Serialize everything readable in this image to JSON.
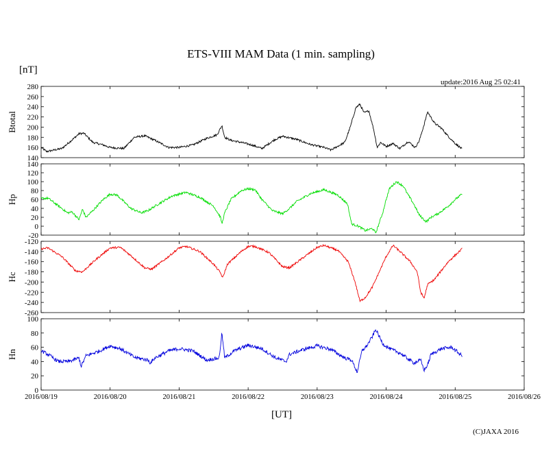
{
  "chart_data": {
    "type": "line",
    "title": "ETS-VIII MAM Data (1 min. sampling)",
    "ylabel_unit": "[nT]",
    "xlabel": "[UT]",
    "update_text": "update:2016 Aug 25 02:41",
    "credit": "(C)JAXA 2016",
    "x_ticks": [
      "2016/08/19",
      "2016/08/20",
      "2016/08/21",
      "2016/08/22",
      "2016/08/23",
      "2016/08/24",
      "2016/08/25",
      "2016/08/26"
    ],
    "x_range_days": [
      0,
      7
    ],
    "panels": [
      {
        "name": "Btotal",
        "color": "#000000",
        "ylim": [
          140,
          280
        ],
        "y_ticks": [
          140,
          160,
          180,
          200,
          220,
          240,
          260,
          280
        ],
        "noise": 2,
        "x": [
          0,
          0.08,
          0.3,
          0.45,
          0.55,
          0.62,
          0.75,
          0.9,
          1.0,
          1.2,
          1.35,
          1.5,
          1.65,
          1.85,
          2.0,
          2.2,
          2.4,
          2.55,
          2.62,
          2.66,
          2.75,
          2.9,
          3.05,
          3.2,
          3.38,
          3.5,
          3.7,
          3.9,
          4.1,
          4.2,
          4.4,
          4.48,
          4.56,
          4.62,
          4.68,
          4.75,
          4.82,
          4.87,
          4.92,
          5.0,
          5.1,
          5.2,
          5.32,
          5.42,
          5.48,
          5.55,
          5.6,
          5.7,
          5.8,
          5.9,
          6.0,
          6.1
        ],
        "y": [
          160,
          152,
          158,
          175,
          187,
          188,
          170,
          165,
          160,
          158,
          180,
          183,
          174,
          160,
          160,
          165,
          178,
          185,
          203,
          180,
          174,
          170,
          165,
          158,
          175,
          182,
          176,
          166,
          160,
          155,
          170,
          200,
          238,
          245,
          228,
          232,
          195,
          160,
          170,
          162,
          168,
          158,
          172,
          160,
          173,
          205,
          230,
          208,
          198,
          182,
          168,
          157
        ]
      },
      {
        "name": "Hp",
        "color": "#00dd00",
        "ylim": [
          -20,
          140
        ],
        "y_ticks": [
          -20,
          0,
          20,
          40,
          60,
          80,
          100,
          120,
          140
        ],
        "noise": 2.5,
        "x": [
          0,
          0.1,
          0.3,
          0.38,
          0.45,
          0.52,
          0.55,
          0.6,
          0.65,
          0.75,
          0.9,
          1.0,
          1.1,
          1.3,
          1.45,
          1.55,
          1.7,
          1.9,
          2.1,
          2.3,
          2.5,
          2.6,
          2.62,
          2.66,
          2.75,
          2.9,
          3.0,
          3.1,
          3.2,
          3.35,
          3.5,
          3.6,
          3.7,
          3.9,
          4.1,
          4.3,
          4.44,
          4.5,
          4.6,
          4.7,
          4.8,
          4.85,
          4.95,
          5.0,
          5.05,
          5.15,
          5.25,
          5.3,
          5.4,
          5.48,
          5.58,
          5.65,
          5.75,
          5.9,
          6.0,
          6.1
        ],
        "y": [
          62,
          63,
          40,
          30,
          32,
          20,
          15,
          38,
          20,
          35,
          60,
          72,
          70,
          40,
          30,
          35,
          50,
          68,
          76,
          65,
          45,
          20,
          5,
          30,
          60,
          80,
          84,
          82,
          60,
          35,
          28,
          40,
          55,
          73,
          82,
          70,
          50,
          5,
          0,
          -10,
          -5,
          -15,
          30,
          60,
          85,
          100,
          90,
          75,
          50,
          25,
          10,
          20,
          28,
          45,
          60,
          72
        ]
      },
      {
        "name": "Hc",
        "color": "#ee0000",
        "ylim": [
          -260,
          -120
        ],
        "y_ticks": [
          -260,
          -240,
          -220,
          -200,
          -180,
          -160,
          -140,
          -120
        ],
        "noise": 2,
        "x": [
          0,
          0.1,
          0.3,
          0.5,
          0.6,
          0.8,
          1.0,
          1.15,
          1.3,
          1.5,
          1.6,
          1.8,
          2.0,
          2.1,
          2.3,
          2.5,
          2.6,
          2.63,
          2.7,
          2.9,
          3.0,
          3.1,
          3.3,
          3.5,
          3.6,
          3.8,
          4.0,
          4.1,
          4.3,
          4.45,
          4.55,
          4.62,
          4.7,
          4.8,
          4.9,
          5.0,
          5.1,
          5.2,
          5.35,
          5.45,
          5.5,
          5.55,
          5.6,
          5.7,
          5.9,
          6.1
        ],
        "y": [
          -135,
          -133,
          -150,
          -178,
          -180,
          -155,
          -133,
          -132,
          -148,
          -172,
          -175,
          -155,
          -133,
          -130,
          -140,
          -165,
          -182,
          -192,
          -165,
          -140,
          -130,
          -130,
          -142,
          -170,
          -172,
          -152,
          -132,
          -128,
          -138,
          -160,
          -200,
          -238,
          -230,
          -210,
          -180,
          -150,
          -128,
          -140,
          -160,
          -180,
          -220,
          -232,
          -205,
          -195,
          -160,
          -135
        ]
      },
      {
        "name": "Hn",
        "color": "#0000dd",
        "ylim": [
          0,
          100
        ],
        "y_ticks": [
          0,
          20,
          40,
          60,
          80,
          100
        ],
        "noise": 2.5,
        "x": [
          0,
          0.1,
          0.25,
          0.4,
          0.55,
          0.58,
          0.65,
          0.85,
          1.0,
          1.15,
          1.35,
          1.55,
          1.58,
          1.65,
          1.85,
          2.0,
          2.2,
          2.4,
          2.58,
          2.62,
          2.66,
          2.8,
          3.0,
          3.2,
          3.4,
          3.55,
          3.6,
          3.8,
          4.0,
          4.2,
          4.4,
          4.5,
          4.58,
          4.65,
          4.72,
          4.8,
          4.85,
          4.95,
          5.05,
          5.2,
          5.3,
          5.4,
          5.5,
          5.55,
          5.6,
          5.65,
          5.8,
          5.95,
          6.1
        ],
        "y": [
          55,
          50,
          40,
          40,
          45,
          33,
          48,
          55,
          62,
          58,
          46,
          42,
          38,
          45,
          55,
          58,
          55,
          42,
          45,
          80,
          45,
          55,
          63,
          58,
          45,
          40,
          50,
          57,
          62,
          57,
          45,
          42,
          25,
          55,
          62,
          75,
          85,
          65,
          58,
          52,
          45,
          38,
          42,
          28,
          35,
          50,
          58,
          60,
          48
        ]
      }
    ]
  }
}
